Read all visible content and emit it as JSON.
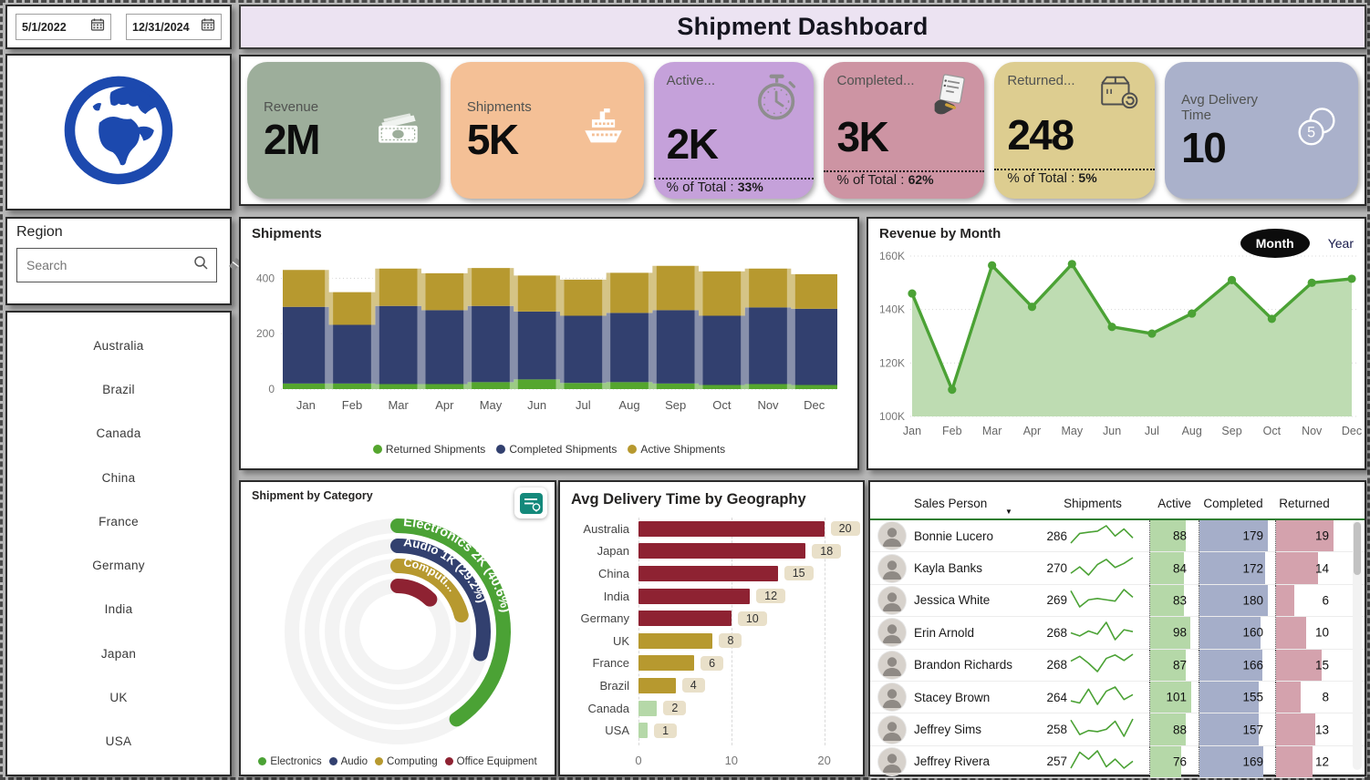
{
  "page": {
    "title": "Shipment Dashboard"
  },
  "filters": {
    "date_from": "5/1/2022",
    "date_to": "12/31/2024",
    "region": {
      "title": "Region",
      "search_placeholder": "Search",
      "items": [
        "Australia",
        "Brazil",
        "Canada",
        "China",
        "France",
        "Germany",
        "India",
        "Japan",
        "UK",
        "USA"
      ]
    }
  },
  "kpis": {
    "revenue": {
      "label": "Revenue",
      "value": "2M",
      "bg": "#9dae9b"
    },
    "shipments": {
      "label": "Shipments",
      "value": "5K",
      "bg": "#f4c096"
    },
    "active": {
      "label": "Active...",
      "value": "2K",
      "pct_prefix": "% of Total :",
      "pct": "33%",
      "bg": "#c5a1da"
    },
    "completed": {
      "label": "Completed...",
      "value": "3K",
      "pct_prefix": "% of Total :",
      "pct": "62%",
      "bg": "#cd94a3"
    },
    "returned": {
      "label": "Returned...",
      "value": "248",
      "pct_prefix": "% of Total :",
      "pct": "5%",
      "bg": "#ddcd90"
    },
    "avg_delivery": {
      "label": "Avg Delivery Time",
      "value": "10",
      "bg": "#aab1cb"
    }
  },
  "chart_data": [
    {
      "id": "shipments_by_month",
      "type": "area",
      "title": "Shipments",
      "categories": [
        "Jan",
        "Feb",
        "Mar",
        "Apr",
        "May",
        "Jun",
        "Jul",
        "Aug",
        "Sep",
        "Oct",
        "Nov",
        "Dec"
      ],
      "series": [
        {
          "name": "Returned Shipments",
          "color": "#55a62e",
          "values": [
            20,
            20,
            18,
            18,
            25,
            35,
            22,
            25,
            20,
            15,
            18,
            15
          ]
        },
        {
          "name": "Completed Shipments",
          "color": "#32406f",
          "values": [
            277,
            212,
            282,
            267,
            275,
            245,
            243,
            250,
            265,
            250,
            277,
            275
          ]
        },
        {
          "name": "Active Shipments",
          "color": "#b7992f",
          "values": [
            133,
            118,
            135,
            133,
            137,
            130,
            130,
            145,
            160,
            160,
            140,
            125
          ]
        }
      ],
      "ylim": [
        0,
        500
      ],
      "yticks": [
        0,
        200,
        400
      ],
      "grid": "dotted",
      "legend_position": "bottom"
    },
    {
      "id": "revenue_by_month",
      "type": "line",
      "title": "Revenue by Month",
      "x": [
        "Jan",
        "Feb",
        "Mar",
        "Apr",
        "May",
        "Jun",
        "Jul",
        "Aug",
        "Sep",
        "Oct",
        "Nov",
        "Dec"
      ],
      "values": [
        146,
        110,
        156.5,
        141,
        157,
        133.5,
        131,
        138.5,
        151,
        136.5,
        150,
        151.5
      ],
      "unit": "K",
      "ylim": [
        100,
        160
      ],
      "yticks": [
        100,
        120,
        140,
        160
      ],
      "line_color": "#4ba235",
      "fill_color": "#bedcb2",
      "toggle": {
        "options": [
          "Month",
          "Year"
        ],
        "selected": "Month"
      }
    },
    {
      "id": "shipment_by_category",
      "type": "radial",
      "title": "Shipment by Category",
      "segments": [
        {
          "name": "Electronics",
          "arc_label": "Electronics 2K (40.6%)",
          "value": "2K",
          "pct": 40.6,
          "color": "#4ba235"
        },
        {
          "name": "Audio",
          "arc_label": "Audio 1K (29.2%)",
          "value": "1K",
          "pct": 29.2,
          "color": "#32406f"
        },
        {
          "name": "Computing",
          "arc_label": "Computi...",
          "value": "",
          "pct": 21.0,
          "color": "#b7992f"
        },
        {
          "name": "Office Equipment",
          "arc_label": "",
          "value": "",
          "pct": 12.5,
          "color": "#8e2232"
        }
      ]
    },
    {
      "id": "avg_delivery_by_geography",
      "type": "bar",
      "title": "Avg Delivery Time by Geography",
      "categories": [
        "Australia",
        "Japan",
        "China",
        "India",
        "Germany",
        "UK",
        "France",
        "Brazil",
        "Canada",
        "USA"
      ],
      "values": [
        20,
        18,
        15,
        12,
        10,
        8,
        6,
        4,
        2,
        1
      ],
      "colors": [
        "#8e2232",
        "#8e2232",
        "#8e2232",
        "#8e2232",
        "#8e2232",
        "#b7992f",
        "#b7992f",
        "#b7992f",
        "#b5d8a8",
        "#b5d8a8"
      ],
      "xticks": [
        0,
        10,
        20
      ],
      "xmax": 22
    }
  ],
  "table": {
    "columns": [
      "Sales Person",
      "Shipments",
      "Active",
      "Completed",
      "Returned"
    ],
    "bar_colors": {
      "active": "#b5d8a8",
      "completed": "#a5aec9",
      "returned": "#d4a2ad"
    },
    "rows": [
      {
        "name": "Bonnie Lucero",
        "shipments": 286,
        "spark": [
          8,
          38,
          42,
          45,
          62,
          30,
          52,
          24
        ],
        "active": 88,
        "completed": 179,
        "returned": 19
      },
      {
        "name": "Kayla Banks",
        "shipments": 270,
        "spark": [
          18,
          40,
          12,
          48,
          66,
          38,
          52,
          72
        ],
        "active": 84,
        "completed": 172,
        "returned": 14
      },
      {
        "name": "Jessica White",
        "shipments": 269,
        "spark": [
          58,
          8,
          30,
          34,
          30,
          26,
          62,
          38
        ],
        "active": 83,
        "completed": 180,
        "returned": 6
      },
      {
        "name": "Erin Arnold",
        "shipments": 268,
        "spark": [
          32,
          22,
          38,
          28,
          66,
          10,
          42,
          36
        ],
        "active": 98,
        "completed": 160,
        "returned": 10
      },
      {
        "name": "Brandon Richards",
        "shipments": 268,
        "spark": [
          36,
          50,
          30,
          6,
          44,
          54,
          38,
          56
        ],
        "active": 87,
        "completed": 166,
        "returned": 15
      },
      {
        "name": "Stacey Brown",
        "shipments": 264,
        "spark": [
          22,
          16,
          56,
          12,
          50,
          62,
          26,
          40
        ],
        "active": 101,
        "completed": 155,
        "returned": 8
      },
      {
        "name": "Jeffrey Sims",
        "shipments": 258,
        "spark": [
          62,
          12,
          26,
          22,
          30,
          58,
          6,
          66
        ],
        "active": 88,
        "completed": 157,
        "returned": 13
      },
      {
        "name": "Jeffrey Rivera",
        "shipments": 257,
        "spark": [
          12,
          58,
          38,
          62,
          16,
          38,
          12,
          32
        ],
        "active": 76,
        "completed": 169,
        "returned": 12
      }
    ]
  }
}
